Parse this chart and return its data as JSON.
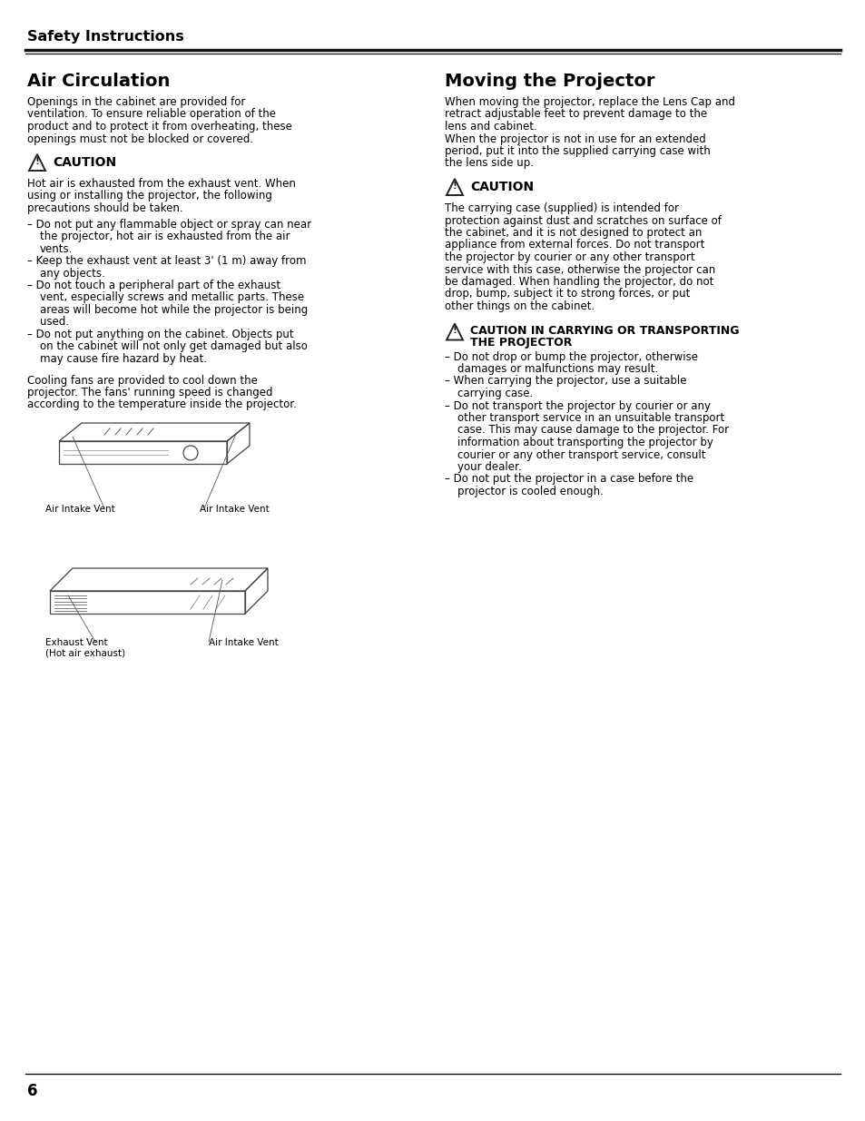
{
  "bg_color": "#ffffff",
  "text_color": "#000000",
  "header_text": "Safety Instructions",
  "page_number": "6",
  "left_section_title": "Air Circulation",
  "right_section_title": "Moving the Projector",
  "left_intro": "Openings in the cabinet are provided for ventilation. To ensure reliable operation of the product and to protect it from overheating, these openings must not be blocked or covered.",
  "left_caution_label": "CAUTION",
  "left_caution_body": "Hot air is exhausted from the exhaust vent. When using or installing the projector, the following precautions should be taken.",
  "left_bullets": [
    "Do not put any flammable object or spray can near the projector, hot air is exhausted from the air vents.",
    "Keep the exhaust vent at least 3' (1 m) away from any objects.",
    "Do not touch a peripheral part of the exhaust vent, especially screws and metallic parts. These areas will become hot while the projector is being used.",
    "Do not put anything on the cabinet. Objects put on the cabinet will not only get damaged but also may cause fire hazard by heat."
  ],
  "left_footer": "Cooling fans are provided to cool down the projector. The fans' running speed is changed according to the temperature inside the projector.",
  "left_img1_label1": "Air Intake Vent",
  "left_img1_label2": "Air Intake Vent",
  "left_img2_label1": "Exhaust Vent\n(Hot air exhaust)",
  "left_img2_label2": "Air Intake Vent",
  "right_intro_para1": "When moving the projector, replace the Lens Cap and retract adjustable feet to prevent damage to the lens and cabinet.",
  "right_intro_para2": "When the projector is not in use for an extended period, put it into the supplied carrying case with the lens side up.",
  "right_caution_label": "CAUTION",
  "right_caution_body": "The carrying case (supplied) is intended for protection against dust and scratches on surface of the cabinet, and it is not designed to protect an appliance from external forces. Do not transport the projector by courier or any other transport service with this case, otherwise the projector can be damaged. When handling the projector, do not drop, bump, subject it to strong forces, or put other things on the cabinet.",
  "right_caution2_line1": "CAUTION IN CARRYING OR TRANSPORTING",
  "right_caution2_line2": "THE PROJECTOR",
  "right_bullets": [
    "Do not drop or bump the projector, otherwise damages or malfunctions may result.",
    "When carrying the projector, use a suitable carrying case.",
    "Do not transport the projector by courier or any other transport service in an unsuitable transport case. This may cause damage to the projector. For information about transporting the projector by courier or any other transport service, consult your dealer.",
    "Do not put the projector in a case before the projector is cooled enough."
  ]
}
